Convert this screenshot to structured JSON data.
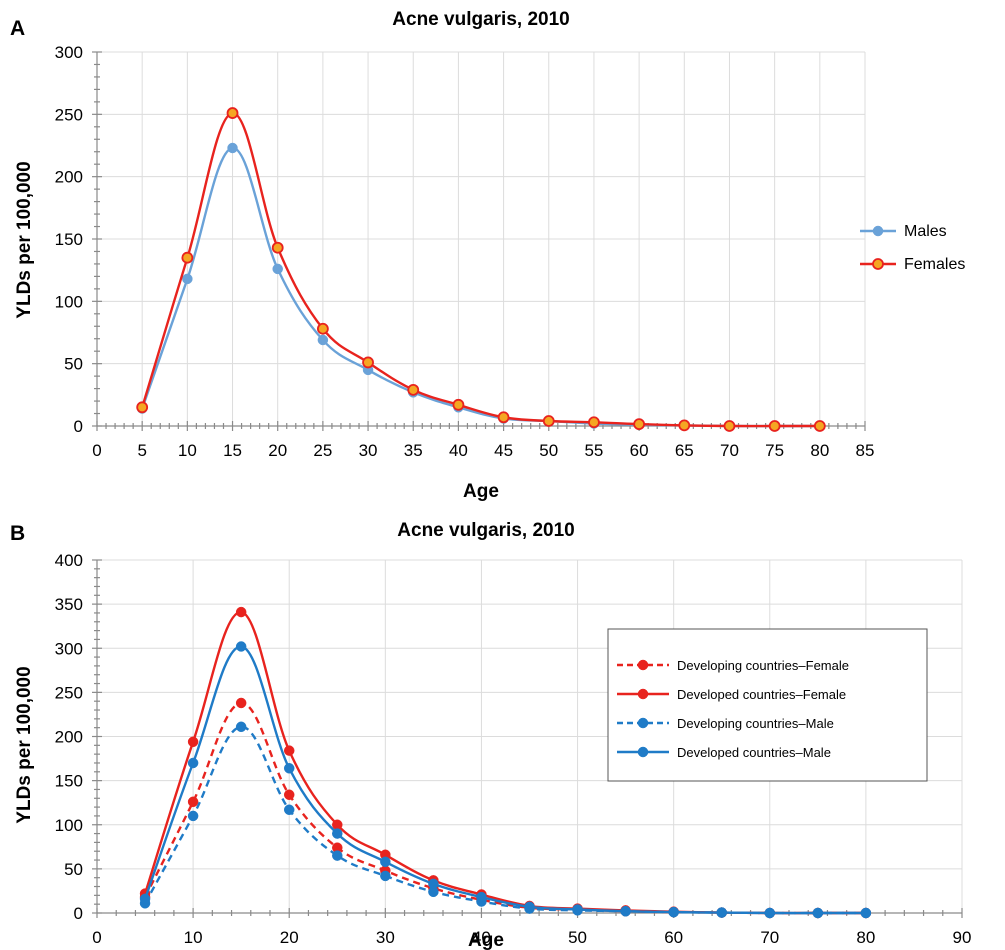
{
  "chart_data": [
    {
      "panel": "A",
      "type": "line",
      "title": "Acne vulgaris, 2010",
      "xlabel": "Age",
      "ylabel": "YLDs per 100,000",
      "xlim": [
        0,
        85
      ],
      "ylim": [
        0,
        300
      ],
      "xticks": [
        0,
        5,
        10,
        15,
        20,
        25,
        30,
        35,
        40,
        45,
        50,
        55,
        60,
        65,
        70,
        75,
        80,
        85
      ],
      "yticks": [
        0,
        50,
        100,
        150,
        200,
        250,
        300
      ],
      "grid": true,
      "legend_position": "right",
      "x": [
        5,
        10,
        15,
        20,
        25,
        30,
        35,
        40,
        45,
        50,
        55,
        60,
        65,
        70,
        75,
        80
      ],
      "series": [
        {
          "name": "Males",
          "color": "#6aa2d8",
          "style": "solid",
          "marker": "circle",
          "values": [
            14,
            118,
            223,
            126,
            69,
            45,
            27,
            15,
            6,
            4,
            2,
            1,
            0.5,
            0,
            0,
            0
          ]
        },
        {
          "name": "Females",
          "color": "#e8231e",
          "marker_fill": "#f5a623",
          "style": "solid",
          "marker": "circle",
          "values": [
            15,
            135,
            251,
            143,
            78,
            51,
            29,
            17,
            7,
            4,
            3,
            1.5,
            0.5,
            0,
            0,
            0
          ]
        }
      ]
    },
    {
      "panel": "B",
      "type": "line",
      "title": "Acne vulgaris, 2010",
      "xlabel": "Age",
      "ylabel": "YLDs per 100,000",
      "xlim": [
        0,
        90
      ],
      "ylim": [
        0,
        400
      ],
      "xticks": [
        0,
        10,
        20,
        30,
        40,
        50,
        60,
        70,
        80,
        90
      ],
      "yticks": [
        0,
        50,
        100,
        150,
        200,
        250,
        300,
        350,
        400
      ],
      "grid": true,
      "legend_position": "right-middle, boxed",
      "x": [
        5,
        10,
        15,
        20,
        25,
        30,
        35,
        40,
        45,
        50,
        55,
        60,
        65,
        70,
        75,
        80
      ],
      "series": [
        {
          "name": "Developing countries–Female",
          "color": "#e8231e",
          "style": "dashed",
          "marker": "circle",
          "values": [
            18,
            126,
            238,
            134,
            74,
            48,
            28,
            15,
            6,
            4,
            2,
            1,
            0.5,
            0,
            0,
            0
          ]
        },
        {
          "name": "Developed countries–Female",
          "color": "#e8231e",
          "style": "solid",
          "marker": "circle",
          "values": [
            22,
            194,
            341,
            184,
            100,
            66,
            37,
            21,
            8,
            5,
            3,
            1.5,
            0.5,
            0,
            0,
            0
          ]
        },
        {
          "name": "Developing countries–Male",
          "color": "#1f7bc7",
          "style": "dashed",
          "marker": "circle",
          "values": [
            11,
            110,
            211,
            117,
            65,
            42,
            24,
            13,
            5,
            3,
            2,
            1,
            0.5,
            0,
            0,
            0
          ]
        },
        {
          "name": "Developed countries–Male",
          "color": "#1f7bc7",
          "style": "solid",
          "marker": "circle",
          "values": [
            16,
            170,
            302,
            164,
            90,
            58,
            33,
            18,
            7,
            4,
            2,
            1,
            0.5,
            0,
            0,
            0
          ]
        }
      ]
    }
  ]
}
